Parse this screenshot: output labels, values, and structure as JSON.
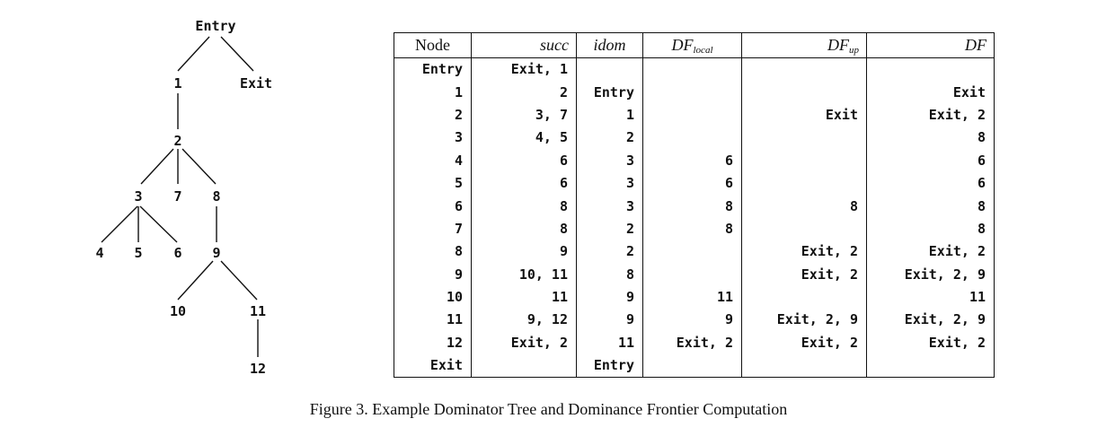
{
  "tree": {
    "nodes": [
      "Entry",
      "1",
      "Exit",
      "2",
      "3",
      "7",
      "8",
      "4",
      "5",
      "6",
      "9",
      "10",
      "11",
      "12"
    ]
  },
  "table": {
    "headers": {
      "node": "Node",
      "succ": "succ",
      "idom": "idom",
      "df_local_main": "DF",
      "df_local_sub": "local",
      "df_up_main": "DF",
      "df_up_sub": "up",
      "df": "DF"
    },
    "rows": [
      {
        "node": "Entry",
        "succ": "Exit, 1",
        "idom": "",
        "df_local": "",
        "df_up": "",
        "df": ""
      },
      {
        "node": "1",
        "succ": "2",
        "idom": "Entry",
        "df_local": "",
        "df_up": "",
        "df": "Exit"
      },
      {
        "node": "2",
        "succ": "3, 7",
        "idom": "1",
        "df_local": "",
        "df_up": "Exit",
        "df": "Exit, 2"
      },
      {
        "node": "3",
        "succ": "4, 5",
        "idom": "2",
        "df_local": "",
        "df_up": "",
        "df": "8"
      },
      {
        "node": "4",
        "succ": "6",
        "idom": "3",
        "df_local": "6",
        "df_up": "",
        "df": "6"
      },
      {
        "node": "5",
        "succ": "6",
        "idom": "3",
        "df_local": "6",
        "df_up": "",
        "df": "6"
      },
      {
        "node": "6",
        "succ": "8",
        "idom": "3",
        "df_local": "8",
        "df_up": "8",
        "df": "8"
      },
      {
        "node": "7",
        "succ": "8",
        "idom": "2",
        "df_local": "8",
        "df_up": "",
        "df": "8"
      },
      {
        "node": "8",
        "succ": "9",
        "idom": "2",
        "df_local": "",
        "df_up": "Exit, 2",
        "df": "Exit, 2"
      },
      {
        "node": "9",
        "succ": "10, 11",
        "idom": "8",
        "df_local": "",
        "df_up": "Exit, 2",
        "df": "Exit, 2, 9"
      },
      {
        "node": "10",
        "succ": "11",
        "idom": "9",
        "df_local": "11",
        "df_up": "",
        "df": "11"
      },
      {
        "node": "11",
        "succ": "9, 12",
        "idom": "9",
        "df_local": "9",
        "df_up": "Exit, 2, 9",
        "df": "Exit, 2, 9"
      },
      {
        "node": "12",
        "succ": "Exit, 2",
        "idom": "11",
        "df_local": "Exit, 2",
        "df_up": "Exit, 2",
        "df": "Exit, 2"
      },
      {
        "node": "Exit",
        "succ": "",
        "idom": "Entry",
        "df_local": "",
        "df_up": "",
        "df": ""
      }
    ]
  },
  "caption": "Figure 3. Example Dominator Tree and Dominance Frontier Computation"
}
